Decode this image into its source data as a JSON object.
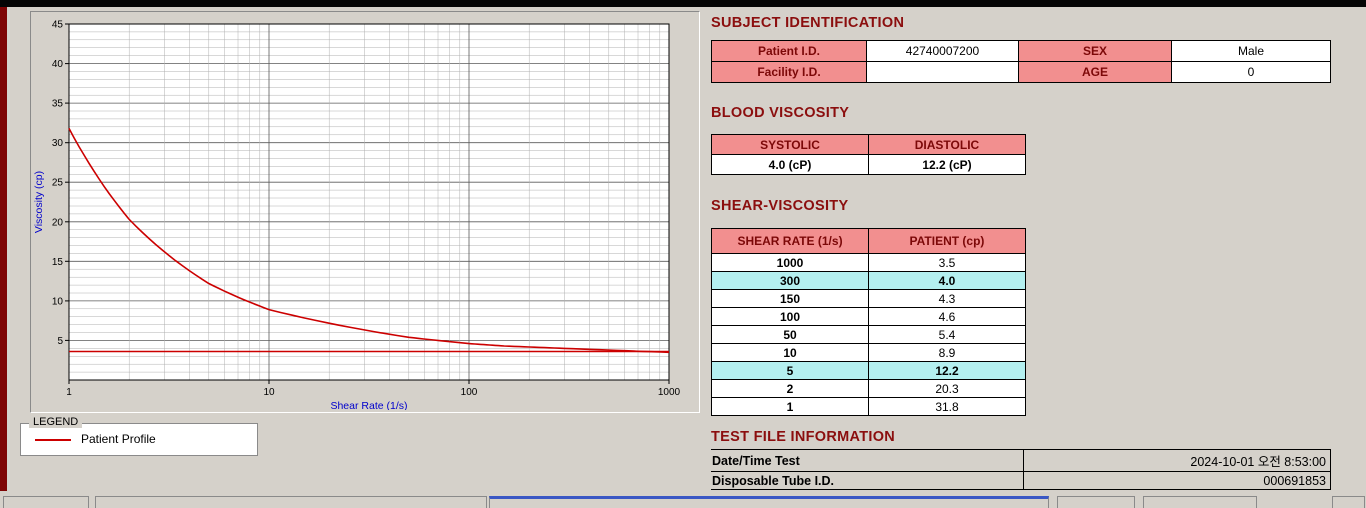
{
  "window": {
    "bg": "#d5d1ca",
    "top_strip_color": "#050505",
    "left_strip_color": "#7e0404"
  },
  "chart_data": {
    "type": "line",
    "title": "",
    "xlabel": "Shear Rate (1/s)",
    "ylabel": "Viscosity (cp)",
    "x_scale": "log",
    "xlim": [
      1,
      1000
    ],
    "ylim": [
      0,
      45
    ],
    "y_major_ticks": [
      5,
      10,
      15,
      20,
      25,
      30,
      35,
      40,
      45
    ],
    "x_ticks": [
      1,
      10,
      100,
      1000
    ],
    "grid": true,
    "legend_position": "below-left",
    "series": [
      {
        "name": "Patient Profile",
        "color": "#cc0000",
        "x": [
          1,
          2,
          5,
          10,
          50,
          100,
          150,
          300,
          1000
        ],
        "y": [
          31.8,
          20.3,
          12.2,
          8.9,
          5.4,
          4.6,
          4.3,
          4.0,
          3.5
        ]
      },
      {
        "name": "baseline",
        "color": "#cc0000",
        "x": [
          1,
          1000
        ],
        "y": [
          3.6,
          3.6
        ]
      }
    ]
  },
  "legend": {
    "title": "LEGEND",
    "series_label": "Patient Profile",
    "line_color": "#cc0000"
  },
  "subject": {
    "heading": "SUBJECT IDENTIFICATION",
    "rows": [
      {
        "label": "Patient I.D.",
        "value": "42740007200",
        "label2": "SEX",
        "value2": "Male"
      },
      {
        "label": "Facility I.D.",
        "value": "",
        "label2": "AGE",
        "value2": "0"
      }
    ]
  },
  "blood": {
    "heading": "BLOOD VISCOSITY",
    "columns": [
      "SYSTOLIC",
      "DIASTOLIC"
    ],
    "values": [
      "4.0 (cP)",
      "12.2 (cP)"
    ]
  },
  "shear": {
    "heading": "SHEAR-VISCOSITY",
    "columns": [
      "SHEAR RATE (1/s)",
      "PATIENT (cp)"
    ],
    "rows": [
      {
        "rate": "1000",
        "cp": "3.5",
        "highlight": false
      },
      {
        "rate": "300",
        "cp": "4.0",
        "highlight": true
      },
      {
        "rate": "150",
        "cp": "4.3",
        "highlight": false
      },
      {
        "rate": "100",
        "cp": "4.6",
        "highlight": false
      },
      {
        "rate": "50",
        "cp": "5.4",
        "highlight": false
      },
      {
        "rate": "10",
        "cp": "8.9",
        "highlight": false
      },
      {
        "rate": "5",
        "cp": "12.2",
        "highlight": true
      },
      {
        "rate": "2",
        "cp": "20.3",
        "highlight": false
      },
      {
        "rate": "1",
        "cp": "31.8",
        "highlight": false
      }
    ]
  },
  "testfile": {
    "heading": "TEST FILE INFORMATION",
    "rows": [
      {
        "label": "Date/Time Test",
        "value": "2024-10-01  오전 8:53:00"
      },
      {
        "label": "Disposable Tube I.D.",
        "value": "000691853"
      }
    ]
  },
  "colors": {
    "heading": "#8b0e0e",
    "table_header_bg": "#f28f8f",
    "highlight_bg": "#b4f0f0",
    "curve": "#cc0000",
    "axis_label": "#0000cc"
  }
}
